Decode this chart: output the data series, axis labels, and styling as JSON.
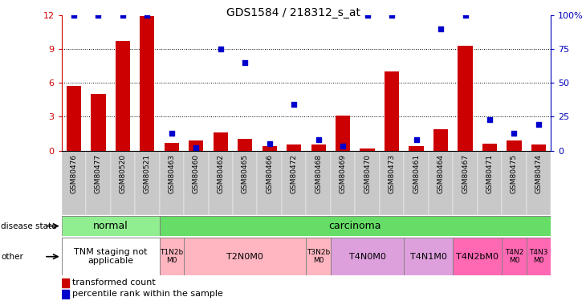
{
  "title": "GDS1584 / 218312_s_at",
  "samples": [
    "GSM80476",
    "GSM80477",
    "GSM80520",
    "GSM80521",
    "GSM80463",
    "GSM80460",
    "GSM80462",
    "GSM80465",
    "GSM80466",
    "GSM80472",
    "GSM80468",
    "GSM80469",
    "GSM80470",
    "GSM80473",
    "GSM80461",
    "GSM80464",
    "GSM80467",
    "GSM80471",
    "GSM80475",
    "GSM80474"
  ],
  "transformed_count": [
    5.7,
    5.0,
    9.7,
    11.9,
    0.7,
    0.9,
    1.6,
    1.0,
    0.4,
    0.5,
    0.5,
    3.1,
    0.2,
    7.0,
    0.4,
    1.9,
    9.3,
    0.6,
    0.9,
    0.5
  ],
  "percentile_rank": [
    100,
    100,
    100,
    100,
    13,
    2,
    75,
    65,
    5,
    34,
    8,
    3,
    100,
    100,
    8,
    90,
    100,
    23,
    13,
    19
  ],
  "disease_state_groups": [
    {
      "label": "normal",
      "start": 0,
      "end": 4,
      "color": "#90EE90"
    },
    {
      "label": "carcinoma",
      "start": 4,
      "end": 20,
      "color": "#66DD66"
    }
  ],
  "other_groups": [
    {
      "label": "TNM staging not\napplicable",
      "start": 0,
      "end": 4,
      "color": "#ffffff"
    },
    {
      "label": "T1N2b\nM0",
      "start": 4,
      "end": 5,
      "color": "#FFB6C1"
    },
    {
      "label": "T2N0M0",
      "start": 5,
      "end": 10,
      "color": "#FFB6C1"
    },
    {
      "label": "T3N2b\nM0",
      "start": 10,
      "end": 11,
      "color": "#FFB6C1"
    },
    {
      "label": "T4N0M0",
      "start": 11,
      "end": 14,
      "color": "#DDA0DD"
    },
    {
      "label": "T4N1M0",
      "start": 14,
      "end": 16,
      "color": "#DDA0DD"
    },
    {
      "label": "T4N2bM0",
      "start": 16,
      "end": 18,
      "color": "#FF69B4"
    },
    {
      "label": "T4N2\nM0",
      "start": 18,
      "end": 19,
      "color": "#FF69B4"
    },
    {
      "label": "T4N3\nM0",
      "start": 19,
      "end": 20,
      "color": "#FF69B4"
    }
  ],
  "bar_color": "#CC0000",
  "dot_color": "#0000CC",
  "ylim_left": [
    0,
    12
  ],
  "yticks_left": [
    0,
    3,
    6,
    9,
    12
  ],
  "yticks_right": [
    0,
    25,
    50,
    75,
    100
  ],
  "left_axis_color": "#CC0000",
  "right_axis_color": "#0000BB",
  "grid_lines": [
    3,
    6,
    9
  ],
  "bg_xtick": "#C8C8C8"
}
